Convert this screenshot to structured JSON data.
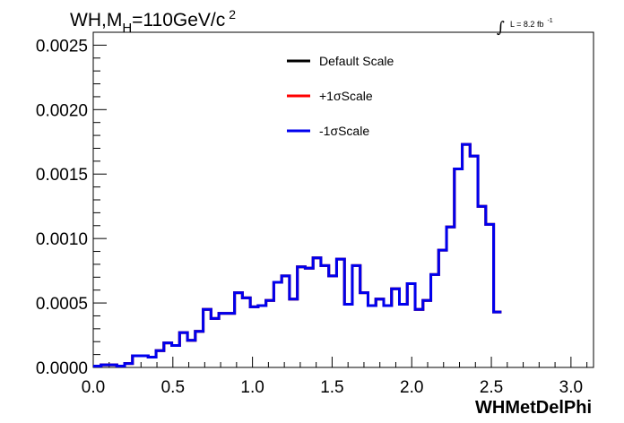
{
  "chart_data": {
    "type": "line",
    "title": "WH,M",
    "title_sub": "H",
    "title_rest": "=110GeV/c",
    "title_sup": "2",
    "lumi_prefix": "∫",
    "lumi_text": "L = 8.2 fb",
    "lumi_sup": "-1",
    "xlabel": "WHMetDelPhi",
    "ylabel": "",
    "xlim": [
      0.0,
      3.1416
    ],
    "ylim": [
      0.0,
      0.0026
    ],
    "grid": false,
    "legend_placement": "top-center",
    "x_ticks": [
      "0.0",
      "0.5",
      "1.0",
      "1.5",
      "2.0",
      "2.5",
      "3.0"
    ],
    "x_tick_values": [
      0.0,
      0.5,
      1.0,
      1.5,
      2.0,
      2.5,
      3.0
    ],
    "y_ticks": [
      "0.0000",
      "0.0005",
      "0.0010",
      "0.0015",
      "0.0020",
      "0.0025"
    ],
    "y_tick_values": [
      0.0,
      0.0005,
      0.001,
      0.0015,
      0.002,
      0.0025
    ],
    "bin_edges_start": 0.0,
    "bin_width": 0.0493,
    "series": [
      {
        "name": "Default Scale",
        "color": "#000000",
        "values": [
          1e-05,
          2e-05,
          2e-05,
          1e-05,
          3e-05,
          9e-05,
          9e-05,
          8e-05,
          0.00013,
          0.00019,
          0.00017,
          0.00027,
          0.00021,
          0.00028,
          0.00045,
          0.00038,
          0.00042,
          0.00042,
          0.00058,
          0.00054,
          0.00047,
          0.00048,
          0.00052,
          0.00066,
          0.00071,
          0.00053,
          0.00078,
          0.00077,
          0.00085,
          0.00079,
          0.00071,
          0.00084,
          0.00049,
          0.00079,
          0.00058,
          0.00048,
          0.00053,
          0.00048,
          0.00061,
          0.00049,
          0.00065,
          0.00045,
          0.00052,
          0.00072,
          0.00091,
          0.00109,
          0.00154,
          0.00173,
          0.00164,
          0.00125,
          0.00111,
          0.00043
        ]
      },
      {
        "name": "+1σScale",
        "color": "#ff0000",
        "values": [
          1e-05,
          2e-05,
          2e-05,
          1e-05,
          3e-05,
          9e-05,
          9e-05,
          8e-05,
          0.00013,
          0.00019,
          0.00017,
          0.00027,
          0.00021,
          0.00028,
          0.00045,
          0.00038,
          0.00042,
          0.00042,
          0.00058,
          0.00054,
          0.00047,
          0.00048,
          0.00052,
          0.00066,
          0.00071,
          0.00053,
          0.00078,
          0.00077,
          0.00085,
          0.00079,
          0.00071,
          0.00084,
          0.00049,
          0.00079,
          0.00058,
          0.00048,
          0.00053,
          0.00048,
          0.00061,
          0.00049,
          0.00065,
          0.00045,
          0.00052,
          0.00072,
          0.00091,
          0.00109,
          0.00154,
          0.00173,
          0.00164,
          0.00125,
          0.00111,
          0.00043
        ]
      },
      {
        "name": "-1σScale",
        "color": "#0000ee",
        "values": [
          1e-05,
          2e-05,
          2e-05,
          1e-05,
          3e-05,
          9e-05,
          9e-05,
          8e-05,
          0.00013,
          0.00019,
          0.00017,
          0.00027,
          0.00021,
          0.00028,
          0.00045,
          0.00038,
          0.00042,
          0.00042,
          0.00058,
          0.00054,
          0.00047,
          0.00048,
          0.00052,
          0.00066,
          0.00071,
          0.00053,
          0.00078,
          0.00077,
          0.00085,
          0.00079,
          0.00071,
          0.00084,
          0.00049,
          0.00079,
          0.00058,
          0.00048,
          0.00053,
          0.00048,
          0.00061,
          0.00049,
          0.00065,
          0.00045,
          0.00052,
          0.00072,
          0.00091,
          0.00109,
          0.00154,
          0.00173,
          0.00164,
          0.00125,
          0.00111,
          0.00043
        ]
      }
    ]
  }
}
